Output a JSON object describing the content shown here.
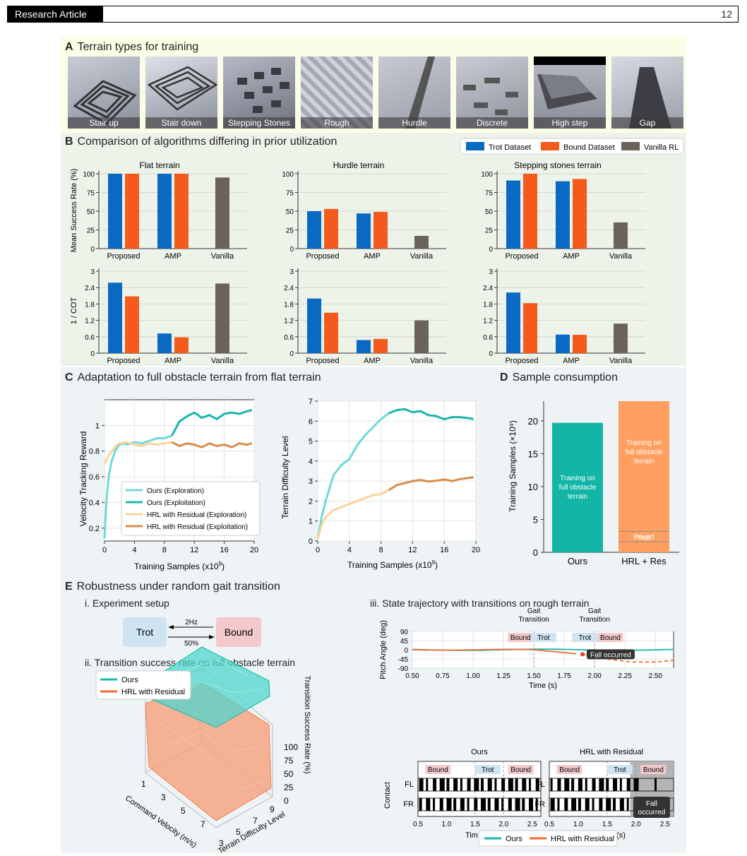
{
  "header": {
    "tag": "Research Article",
    "page": "12"
  },
  "panelA": {
    "letter": "A",
    "title": "Terrain types for training",
    "tiles": [
      "Stair up",
      "Stair down",
      "Stepping Stones",
      "Rough",
      "Hurdle",
      "Discrete",
      "High step",
      "Gap"
    ]
  },
  "panelB": {
    "letter": "B",
    "title": "Comparison of algorithms differing in prior utilization",
    "legend": [
      "Trot Dataset",
      "Bound Dataset",
      "Vanilla RL"
    ],
    "colors": {
      "trot": "#0a6ac3",
      "bound": "#f45a1c",
      "vanilla": "#6b625b"
    },
    "subplots": [
      "Flat terrain",
      "Hurdle terrain",
      "Stepping stones terrain"
    ],
    "groups": [
      "Proposed",
      "AMP",
      "Vanilla"
    ],
    "ylabel_top": "Mean Success Rate (%)",
    "ylabel_bottom": "1 / COT",
    "yticks_top": [
      "0",
      "25",
      "50",
      "75",
      "100"
    ],
    "yticks_bottom": [
      "0",
      "0.6",
      "1.2",
      "1.8",
      "2.4",
      "3"
    ]
  },
  "chart_data": [
    {
      "type": "bar",
      "title": "Flat terrain",
      "categories": [
        "Proposed",
        "AMP",
        "Vanilla"
      ],
      "ylabel": "Mean Success Rate (%)",
      "ylim": [
        0,
        100
      ],
      "series": [
        {
          "name": "Trot Dataset",
          "values": [
            100,
            100,
            null
          ]
        },
        {
          "name": "Bound Dataset",
          "values": [
            100,
            100,
            null
          ]
        },
        {
          "name": "Vanilla RL",
          "values": [
            null,
            null,
            95
          ]
        }
      ]
    },
    {
      "type": "bar",
      "title": "Hurdle terrain",
      "categories": [
        "Proposed",
        "AMP",
        "Vanilla"
      ],
      "ylim": [
        0,
        100
      ],
      "series": [
        {
          "name": "Trot Dataset",
          "values": [
            50,
            47,
            null
          ]
        },
        {
          "name": "Bound Dataset",
          "values": [
            53,
            49,
            null
          ]
        },
        {
          "name": "Vanilla RL",
          "values": [
            null,
            null,
            17
          ]
        }
      ]
    },
    {
      "type": "bar",
      "title": "Stepping stones terrain",
      "categories": [
        "Proposed",
        "AMP",
        "Vanilla"
      ],
      "ylim": [
        0,
        100
      ],
      "series": [
        {
          "name": "Trot Dataset",
          "values": [
            91,
            90,
            null
          ]
        },
        {
          "name": "Bound Dataset",
          "values": [
            100,
            93,
            null
          ]
        },
        {
          "name": "Vanilla RL",
          "values": [
            null,
            null,
            35
          ]
        }
      ]
    },
    {
      "type": "bar",
      "categories": [
        "Proposed",
        "AMP",
        "Vanilla"
      ],
      "ylabel": "1 / COT",
      "ylim": [
        0,
        3
      ],
      "series": [
        {
          "name": "Trot Dataset",
          "values": [
            2.58,
            0.72,
            null
          ]
        },
        {
          "name": "Bound Dataset",
          "values": [
            2.08,
            0.58,
            null
          ]
        },
        {
          "name": "Vanilla RL",
          "values": [
            null,
            null,
            2.55
          ]
        }
      ]
    },
    {
      "type": "bar",
      "categories": [
        "Proposed",
        "AMP",
        "Vanilla"
      ],
      "ylim": [
        0,
        3
      ],
      "series": [
        {
          "name": "Trot Dataset",
          "values": [
            2.0,
            0.48,
            null
          ]
        },
        {
          "name": "Bound Dataset",
          "values": [
            1.48,
            0.52,
            null
          ]
        },
        {
          "name": "Vanilla RL",
          "values": [
            null,
            null,
            1.2
          ]
        }
      ]
    },
    {
      "type": "bar",
      "categories": [
        "Proposed",
        "AMP",
        "Vanilla"
      ],
      "ylim": [
        0,
        3
      ],
      "series": [
        {
          "name": "Trot Dataset",
          "values": [
            2.22,
            0.68,
            null
          ]
        },
        {
          "name": "Bound Dataset",
          "values": [
            1.83,
            0.67,
            null
          ]
        },
        {
          "name": "Vanilla RL",
          "values": [
            null,
            null,
            1.08
          ]
        }
      ]
    },
    {
      "type": "line",
      "xlabel": "Training Samples",
      "ylabel": "Velocity Tracking Reward",
      "xlim": [
        0,
        20
      ],
      "ylim": [
        0.1,
        1.2
      ],
      "series": [
        {
          "name": "Ours (Exploration)",
          "x": [
            0,
            0.3,
            0.6,
            1,
            1.5,
            2,
            2.5,
            3,
            4,
            5,
            6,
            7,
            8,
            9
          ],
          "y": [
            0.12,
            0.45,
            0.62,
            0.73,
            0.81,
            0.85,
            0.86,
            0.85,
            0.87,
            0.86,
            0.88,
            0.9,
            0.9,
            0.92
          ]
        },
        {
          "name": "Ours (Exploitation)",
          "x": [
            9,
            10,
            11,
            12,
            13,
            14,
            15,
            16,
            17,
            18,
            19,
            19.7
          ],
          "y": [
            0.92,
            1.03,
            1.07,
            1.1,
            1.06,
            1.08,
            1.05,
            1.09,
            1.1,
            1.09,
            1.11,
            1.12
          ]
        },
        {
          "name": "HRL with Residual (Exploration)",
          "x": [
            0,
            0.5,
            1,
            1.5,
            2,
            3,
            4,
            5,
            6,
            7,
            8,
            9
          ],
          "y": [
            0.7,
            0.76,
            0.8,
            0.84,
            0.86,
            0.87,
            0.85,
            0.84,
            0.86,
            0.85,
            0.86,
            0.87
          ]
        },
        {
          "name": "HRL with Residual (Exploitation)",
          "x": [
            9,
            10,
            11,
            12,
            13,
            14,
            15,
            16,
            17,
            18,
            19,
            19.7
          ],
          "y": [
            0.87,
            0.84,
            0.86,
            0.85,
            0.83,
            0.86,
            0.84,
            0.85,
            0.83,
            0.86,
            0.85,
            0.86
          ]
        }
      ]
    },
    {
      "type": "line",
      "xlabel": "Training Samples",
      "ylabel": "Terrain Difficulty Level",
      "xlim": [
        0,
        20
      ],
      "ylim": [
        0,
        7
      ],
      "series": [
        {
          "name": "Ours (Exploration)",
          "x": [
            0,
            0.5,
            1,
            2,
            3,
            4,
            5,
            6,
            7,
            8,
            9
          ],
          "y": [
            0.1,
            1.2,
            2.0,
            3.3,
            3.8,
            4.1,
            4.8,
            5.3,
            5.7,
            6.1,
            6.4
          ]
        },
        {
          "name": "Ours (Exploitation)",
          "x": [
            9,
            10,
            11,
            12,
            13,
            14,
            15,
            16,
            17,
            18,
            19,
            19.7
          ],
          "y": [
            6.4,
            6.55,
            6.6,
            6.45,
            6.5,
            6.3,
            6.25,
            6.1,
            6.2,
            6.2,
            6.15,
            6.1
          ]
        },
        {
          "name": "HRL with Residual (Exploration)",
          "x": [
            0,
            0.5,
            1,
            2,
            3,
            4,
            5,
            6,
            7,
            8,
            9
          ],
          "y": [
            0.1,
            0.8,
            1.2,
            1.55,
            1.7,
            1.85,
            2.0,
            2.15,
            2.3,
            2.35,
            2.55
          ]
        },
        {
          "name": "HRL with Residual (Exploitation)",
          "x": [
            9,
            10,
            11,
            12,
            13,
            14,
            15,
            16,
            17,
            18,
            19,
            19.7
          ],
          "y": [
            2.55,
            2.8,
            2.9,
            3.0,
            3.05,
            2.98,
            3.02,
            3.08,
            3.0,
            3.1,
            3.15,
            3.2
          ]
        }
      ]
    },
    {
      "type": "bar",
      "ylabel": "Training Samples (×10⁹)",
      "ylim": [
        0,
        23
      ],
      "categories": [
        "Ours",
        "HRL + Res"
      ],
      "series": [
        {
          "name": "Trot",
          "values": [
            null,
            1.6
          ]
        },
        {
          "name": "Bound",
          "values": [
            null,
            1.6
          ]
        },
        {
          "name": "Training on full obstacle terrain",
          "values": [
            19.7,
            19.8
          ]
        }
      ]
    }
  ],
  "panelC": {
    "letter": "C",
    "title": "Adaptation to full obstacle terrain from flat terrain",
    "xlabel": "Training Samples",
    "xunit": "(x10",
    "xunit_exp": "9",
    "xunit_end": ")",
    "xticks": [
      "0",
      "4",
      "8",
      "12",
      "16",
      "20"
    ],
    "left": {
      "ylabel": "Velocity Tracking Reward",
      "yticks": [
        "0.2",
        "0.4",
        "0.6",
        "0.8",
        "1"
      ]
    },
    "right": {
      "ylabel": "Terrain Difficulty Level",
      "yticks": [
        "0",
        "1",
        "2",
        "3",
        "4",
        "5",
        "6",
        "7"
      ]
    },
    "legend": [
      "Ours (Exploration)",
      "Ours (Exploitation)",
      "HRL with Residual (Exploration)",
      "HRL with Residual (Exploitation)"
    ],
    "colors": {
      "ours_explore": "#6cdad8",
      "ours_exploit": "#1ab5ab",
      "hrl_explore": "#fbd39c",
      "hrl_exploit": "#d98c4a"
    }
  },
  "panelD": {
    "letter": "D",
    "title": "Sample consumption",
    "ylabel": "Training Samples (×10⁹)",
    "yticks": [
      "0",
      "5",
      "10",
      "15",
      "20"
    ],
    "cats": [
      "Ours",
      "HRL + Res"
    ],
    "bar_text_1": [
      "Training on",
      "full obstacle",
      "terrain"
    ],
    "bar_text_2": [
      "Training on",
      "full obstacle",
      "terrain"
    ],
    "seg_bound": "Bound",
    "seg_trot": "Trot",
    "colors": {
      "ours": "#12b5a6",
      "hrl": "#ffa060"
    }
  },
  "panelE": {
    "letter": "E",
    "title": "Robustness under random gait transition",
    "i_title": "i. Experiment setup",
    "trot": "Trot",
    "bound": "Bound",
    "freq": "2Hz",
    "prob": "50%",
    "ii_title": "ii. Transition success rate on full obstacle terrain",
    "legend3d": [
      "Ours",
      "HRL with Residual"
    ],
    "zlabel": "Transition Success Rate (%)",
    "zticks": [
      "0",
      "25",
      "50",
      "75",
      "100"
    ],
    "xlabel3d": "Command Velocity (m/s)",
    "xticks3d": [
      "1",
      "3",
      "5",
      "7"
    ],
    "ylabel3d": "Terrain Difficulty Level",
    "yticks3d": [
      "3",
      "5",
      "7",
      "9"
    ],
    "iii_title": "iii. State trajectory with transitions on rough terrain",
    "pitch": {
      "ylabel": "Pitch Angle (deg)",
      "yticks": [
        "90",
        "45",
        "0",
        "-45",
        "-90"
      ],
      "xticks": [
        "0.50",
        "0.75",
        "1.00",
        "1.25",
        "1.50",
        "1.75",
        "2.00",
        "2.25",
        "2.50"
      ],
      "xlabel": "Time (s)",
      "gait1": [
        "Gait",
        "Transition"
      ],
      "gait2": [
        "Gait",
        "Transition"
      ],
      "tags": [
        "Bound",
        "Trot",
        "Trot",
        "Bound"
      ],
      "fall": "Fall occurred"
    },
    "contact": {
      "ylabel": "Contact",
      "rows": [
        "FL",
        "FR"
      ],
      "left_title": "Ours",
      "right_title": "HRL with Residual",
      "xticks": [
        "0.5",
        "1.0",
        "1.5",
        "2.0",
        "2.5"
      ],
      "xlabel": "Time (s)",
      "left_tags": [
        "Bound",
        "Trot",
        "Bound"
      ],
      "right_tags": [
        "Bound",
        "Trot",
        "Bound"
      ],
      "fall": [
        "Fall",
        "occurred"
      ]
    },
    "legend_bottom": [
      "Ours",
      "HRL with Residual"
    ],
    "colors": {
      "ours": "#1ab5ab",
      "hrl": "#f26b2f"
    }
  }
}
